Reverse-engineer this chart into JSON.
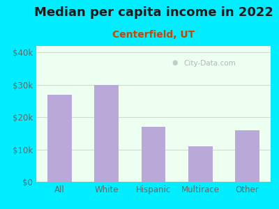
{
  "title": "Median per capita income in 2022",
  "subtitle": "Centerfield, UT",
  "categories": [
    "All",
    "White",
    "Hispanic",
    "Multirace",
    "Other"
  ],
  "values": [
    27000,
    30000,
    17000,
    11000,
    16000
  ],
  "bar_color": "#b8a9d9",
  "title_fontsize": 13,
  "subtitle_fontsize": 10,
  "subtitle_color": "#cc4400",
  "title_color": "#1a1a1a",
  "background_outer": "#00eeff",
  "background_inner": "#edfff0",
  "ylim": [
    0,
    42000
  ],
  "yticks": [
    0,
    10000,
    20000,
    30000,
    40000
  ],
  "ytick_labels": [
    "$0",
    "$10k",
    "$20k",
    "$30k",
    "$40k"
  ],
  "watermark": "City-Data.com",
  "tick_color": "#666666",
  "grid_color": "#ccddcc",
  "bar_width": 0.52
}
